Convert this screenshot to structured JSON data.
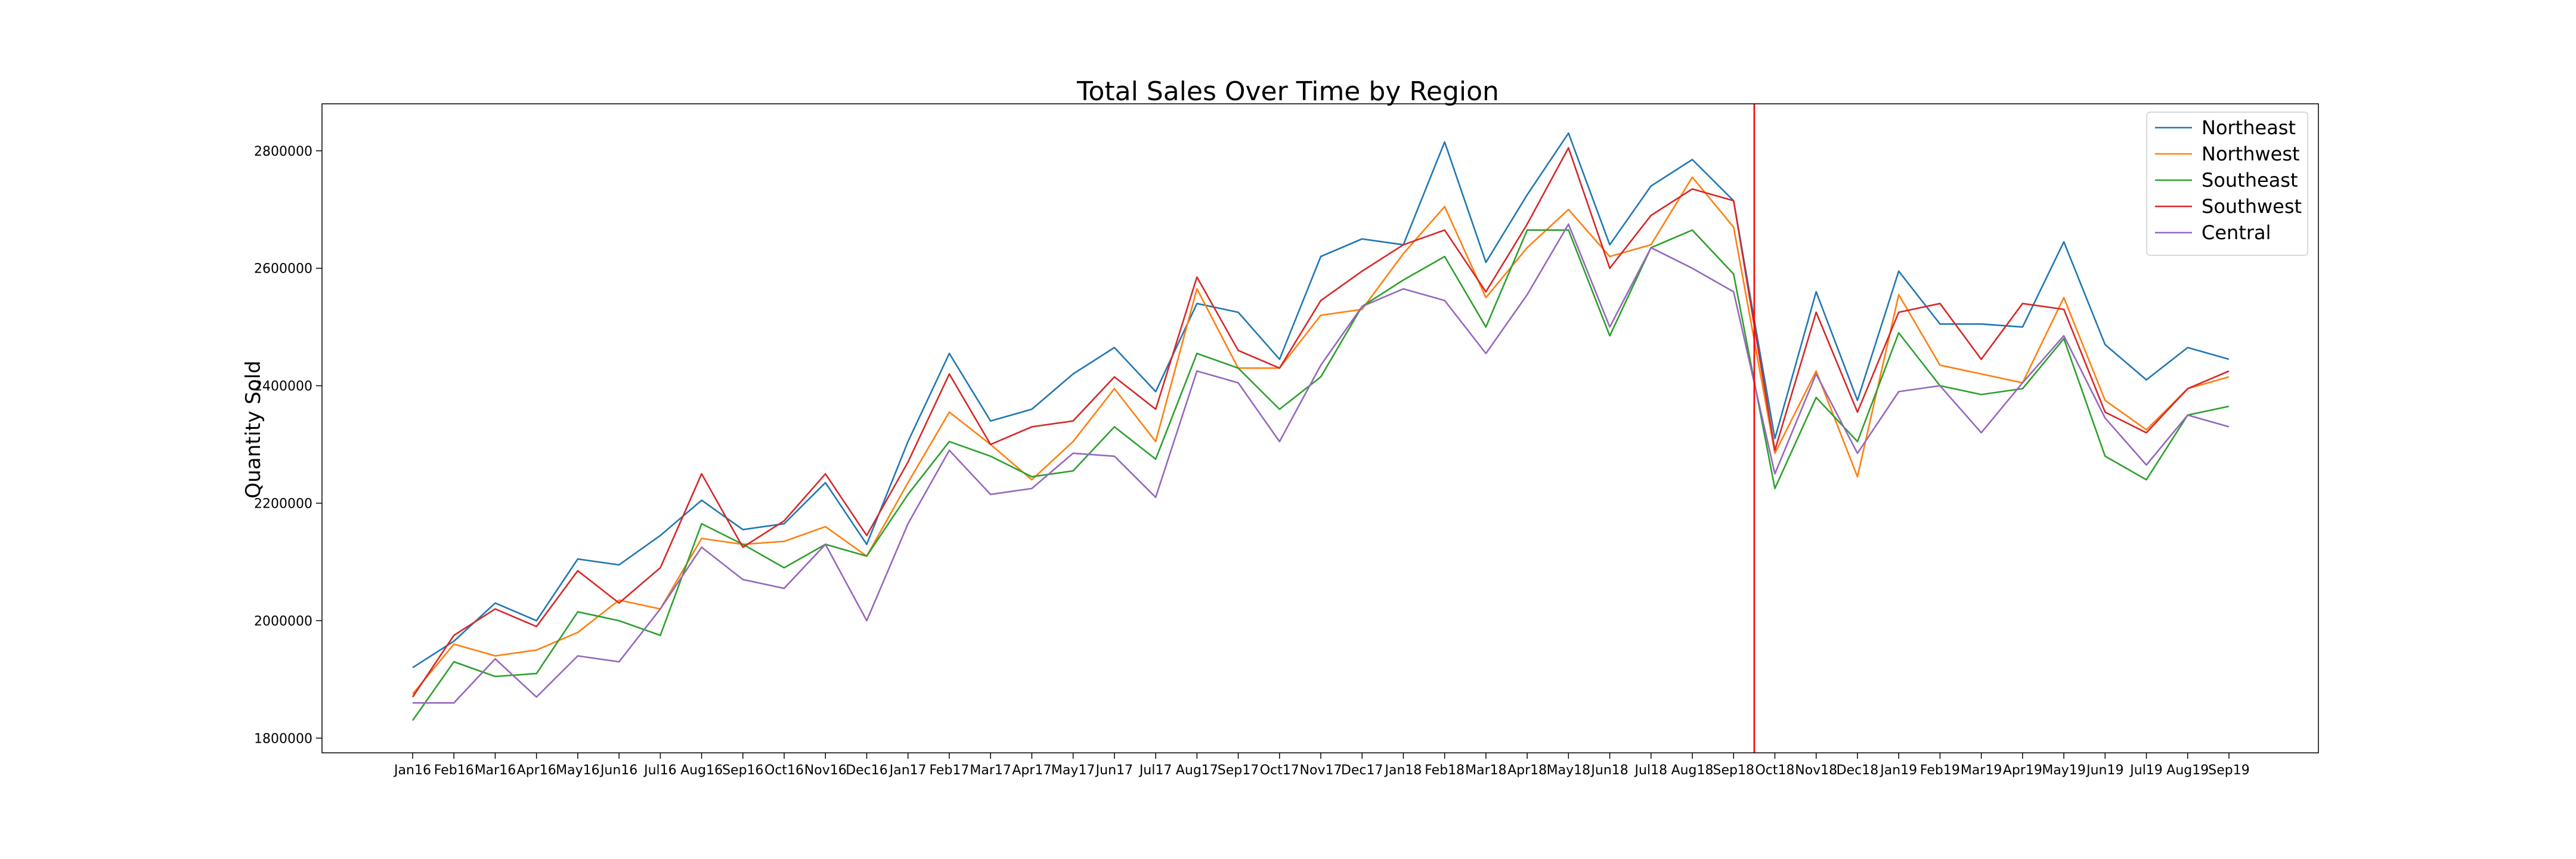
{
  "chart_data": {
    "type": "line",
    "title": "Total Sales Over Time by Region",
    "xlabel": "",
    "ylabel": "Quantity Sold",
    "ylim": [
      1775000,
      2880000
    ],
    "yticks": [
      1800000,
      2000000,
      2200000,
      2400000,
      2600000,
      2800000
    ],
    "grid": false,
    "legend_position": "top-right",
    "vline": {
      "x": "Oct18",
      "color": "#ff0000"
    },
    "categories": [
      "Jan16",
      "Feb16",
      "Mar16",
      "Apr16",
      "May16",
      "Jun16",
      "Jul16",
      "Aug16",
      "Sep16",
      "Oct16",
      "Nov16",
      "Dec16",
      "Jan17",
      "Feb17",
      "Mar17",
      "Apr17",
      "May17",
      "Jun17",
      "Jul17",
      "Aug17",
      "Sep17",
      "Oct17",
      "Nov17",
      "Dec17",
      "Jan18",
      "Feb18",
      "Mar18",
      "Apr18",
      "May18",
      "Jun18",
      "Jul18",
      "Aug18",
      "Sep18",
      "Oct18",
      "Nov18",
      "Dec18",
      "Jan19",
      "Feb19",
      "Mar19",
      "Apr19",
      "May19",
      "Jun19",
      "Jul19",
      "Aug19",
      "Sep19"
    ],
    "series": [
      {
        "name": "Northeast",
        "color": "#1f77b4",
        "values": [
          1920000,
          1965000,
          2030000,
          2000000,
          2105000,
          2095000,
          2145000,
          2205000,
          2155000,
          2165000,
          2235000,
          2130000,
          2305000,
          2455000,
          2340000,
          2360000,
          2420000,
          2465000,
          2390000,
          2540000,
          2525000,
          2445000,
          2620000,
          2650000,
          2640000,
          2815000,
          2610000,
          2725000,
          2830000,
          2640000,
          2740000,
          2785000,
          2715000,
          2310000,
          2560000,
          2375000,
          2595000,
          2505000,
          2505000,
          2500000,
          2645000,
          2470000,
          2410000,
          2465000,
          2445000
        ]
      },
      {
        "name": "Northwest",
        "color": "#ff7f0e",
        "values": [
          1875000,
          1960000,
          1940000,
          1950000,
          1980000,
          2035000,
          2020000,
          2140000,
          2130000,
          2135000,
          2160000,
          2110000,
          2235000,
          2355000,
          2300000,
          2240000,
          2305000,
          2395000,
          2305000,
          2565000,
          2430000,
          2430000,
          2520000,
          2530000,
          2625000,
          2705000,
          2550000,
          2635000,
          2700000,
          2620000,
          2640000,
          2755000,
          2670000,
          2285000,
          2425000,
          2245000,
          2555000,
          2435000,
          2420000,
          2405000,
          2550000,
          2375000,
          2325000,
          2395000,
          2415000
        ]
      },
      {
        "name": "Southeast",
        "color": "#2ca02c",
        "values": [
          1830000,
          1930000,
          1905000,
          1910000,
          2015000,
          2000000,
          1975000,
          2165000,
          2130000,
          2090000,
          2130000,
          2110000,
          2215000,
          2305000,
          2280000,
          2245000,
          2255000,
          2330000,
          2275000,
          2455000,
          2430000,
          2360000,
          2415000,
          2535000,
          2580000,
          2620000,
          2500000,
          2665000,
          2665000,
          2485000,
          2635000,
          2665000,
          2590000,
          2225000,
          2380000,
          2305000,
          2490000,
          2400000,
          2385000,
          2395000,
          2480000,
          2280000,
          2240000,
          2350000,
          2365000
        ]
      },
      {
        "name": "Southwest",
        "color": "#d62728",
        "values": [
          1870000,
          1975000,
          2020000,
          1990000,
          2085000,
          2030000,
          2090000,
          2250000,
          2125000,
          2170000,
          2250000,
          2145000,
          2270000,
          2420000,
          2300000,
          2330000,
          2340000,
          2415000,
          2360000,
          2585000,
          2460000,
          2430000,
          2545000,
          2595000,
          2640000,
          2665000,
          2560000,
          2675000,
          2805000,
          2600000,
          2690000,
          2735000,
          2715000,
          2290000,
          2525000,
          2355000,
          2525000,
          2540000,
          2445000,
          2540000,
          2530000,
          2355000,
          2320000,
          2395000,
          2425000
        ]
      },
      {
        "name": "Central",
        "color": "#9467bd",
        "values": [
          1860000,
          1860000,
          1935000,
          1870000,
          1940000,
          1930000,
          2020000,
          2125000,
          2070000,
          2055000,
          2130000,
          2000000,
          2165000,
          2290000,
          2215000,
          2225000,
          2285000,
          2280000,
          2210000,
          2425000,
          2405000,
          2305000,
          2435000,
          2535000,
          2565000,
          2545000,
          2455000,
          2555000,
          2675000,
          2500000,
          2635000,
          2600000,
          2560000,
          2250000,
          2420000,
          2285000,
          2390000,
          2400000,
          2320000,
          2405000,
          2485000,
          2345000,
          2265000,
          2350000,
          2330000
        ]
      }
    ]
  }
}
